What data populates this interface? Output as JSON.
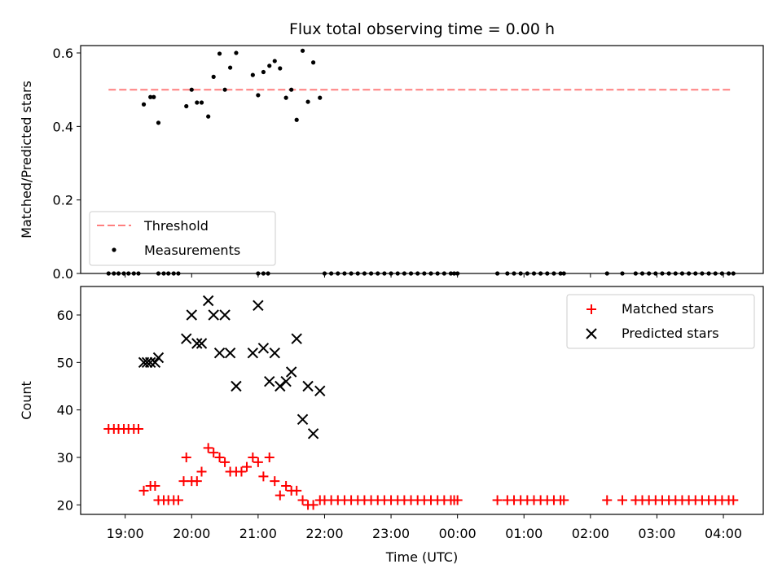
{
  "chart_data": [
    {
      "type": "scatter",
      "title": "Flux total observing time = 0.00 h",
      "xlabel": "",
      "ylabel": "Matched/Predicted stars",
      "ylim": [
        0,
        0.62
      ],
      "yticks": [
        "0.0",
        "0.2",
        "0.4",
        "0.6"
      ],
      "xlim_hours": [
        18.33,
        28.6
      ],
      "legend_position": "lower-left",
      "threshold": {
        "name": "Threshold",
        "value": 0.5,
        "x_start": 18.75,
        "x_end": 28.1,
        "color": "#ff7f7f"
      },
      "series": [
        {
          "name": "Measurements",
          "color": "#000000",
          "x": [
            18.75,
            18.83,
            18.9,
            18.98,
            19.05,
            19.13,
            19.2,
            19.5,
            19.58,
            19.65,
            19.73,
            19.8,
            21.0,
            21.08,
            21.15,
            22.0,
            22.1,
            22.2,
            22.3,
            22.4,
            22.5,
            22.6,
            22.7,
            22.8,
            22.9,
            23.0,
            23.1,
            23.2,
            23.3,
            23.4,
            23.5,
            23.6,
            23.7,
            23.8,
            23.9,
            23.95,
            24.0,
            24.6,
            24.75,
            24.85,
            24.95,
            25.05,
            25.15,
            25.25,
            25.35,
            25.45,
            25.55,
            25.6,
            26.25,
            26.48,
            26.68,
            26.78,
            26.88,
            26.98,
            27.08,
            27.18,
            27.28,
            27.38,
            27.48,
            27.58,
            27.68,
            27.78,
            27.88,
            27.98,
            28.08,
            28.15,
            19.28,
            19.38,
            19.43,
            19.5,
            19.92,
            20.0,
            20.08,
            20.15,
            20.25,
            20.33,
            20.42,
            20.5,
            20.58,
            20.67,
            20.92,
            21.0,
            21.08,
            21.17,
            21.25,
            21.33,
            21.42,
            21.5,
            21.58,
            21.67,
            21.75,
            21.83,
            21.93
          ],
          "y": [
            0,
            0,
            0,
            0,
            0,
            0,
            0,
            0,
            0,
            0,
            0,
            0,
            0,
            0,
            0,
            0,
            0,
            0,
            0,
            0,
            0,
            0,
            0,
            0,
            0,
            0,
            0,
            0,
            0,
            0,
            0,
            0,
            0,
            0,
            0,
            0,
            0,
            0,
            0,
            0,
            0,
            0,
            0,
            0,
            0,
            0,
            0,
            0,
            0,
            0,
            0,
            0,
            0,
            0,
            0,
            0,
            0,
            0,
            0,
            0,
            0,
            0,
            0,
            0,
            0,
            0,
            0.46,
            0.48,
            0.48,
            0.41,
            0.455,
            0.5,
            0.465,
            0.465,
            0.427,
            0.535,
            0.598,
            0.5,
            0.56,
            0.6,
            0.54,
            0.485,
            0.548,
            0.565,
            0.578,
            0.558,
            0.478,
            0.5,
            0.418,
            0.606,
            0.467,
            0.574,
            0.478
          ]
        }
      ]
    },
    {
      "type": "scatter",
      "title": "",
      "xlabel": "Time (UTC)",
      "ylabel": "Count",
      "ylim": [
        18,
        66
      ],
      "yticks": [
        "20",
        "30",
        "40",
        "50",
        "60"
      ],
      "xticks": [
        "19:00",
        "20:00",
        "21:00",
        "22:00",
        "23:00",
        "00:00",
        "01:00",
        "02:00",
        "03:00",
        "04:00"
      ],
      "xlim_hours": [
        18.33,
        28.6
      ],
      "legend_position": "top-right",
      "series": [
        {
          "name": "Matched stars",
          "marker": "+",
          "color": "#ff0000",
          "x": [
            18.75,
            18.83,
            18.9,
            18.98,
            19.05,
            19.13,
            19.2,
            19.28,
            19.38,
            19.45,
            19.5,
            19.58,
            19.65,
            19.73,
            19.8,
            19.88,
            19.92,
            20.0,
            20.08,
            20.15,
            20.25,
            20.33,
            20.42,
            20.5,
            20.58,
            20.67,
            20.75,
            20.83,
            20.92,
            21.0,
            21.08,
            21.17,
            21.25,
            21.33,
            21.42,
            21.5,
            21.58,
            21.67,
            21.75,
            21.83,
            21.93,
            22.0,
            22.1,
            22.2,
            22.3,
            22.4,
            22.5,
            22.6,
            22.7,
            22.8,
            22.9,
            23.0,
            23.1,
            23.2,
            23.3,
            23.4,
            23.5,
            23.6,
            23.7,
            23.8,
            23.9,
            23.95,
            24.0,
            24.6,
            24.75,
            24.85,
            24.95,
            25.05,
            25.15,
            25.25,
            25.35,
            25.45,
            25.55,
            25.6,
            26.25,
            26.48,
            26.68,
            26.78,
            26.88,
            26.98,
            27.08,
            27.18,
            27.28,
            27.38,
            27.48,
            27.58,
            27.68,
            27.78,
            27.88,
            27.98,
            28.08,
            28.15
          ],
          "y": [
            36,
            36,
            36,
            36,
            36,
            36,
            36,
            23,
            24,
            24,
            21,
            21,
            21,
            21,
            21,
            25,
            30,
            25,
            25,
            27,
            32,
            31,
            30,
            29,
            27,
            27,
            27,
            28,
            30,
            29,
            26,
            30,
            25,
            22,
            24,
            23,
            23,
            21,
            20,
            20,
            21,
            21,
            21,
            21,
            21,
            21,
            21,
            21,
            21,
            21,
            21,
            21,
            21,
            21,
            21,
            21,
            21,
            21,
            21,
            21,
            21,
            21,
            21,
            21,
            21,
            21,
            21,
            21,
            21,
            21,
            21,
            21,
            21,
            21,
            21,
            21,
            21,
            21,
            21,
            21,
            21,
            21,
            21,
            21,
            21,
            21,
            21,
            21,
            21,
            21,
            21,
            21
          ]
        },
        {
          "name": "Predicted stars",
          "marker": "x",
          "color": "#000000",
          "x": [
            19.28,
            19.33,
            19.38,
            19.45,
            19.5,
            19.92,
            20.0,
            20.08,
            20.15,
            20.25,
            20.33,
            20.42,
            20.5,
            20.58,
            20.67,
            20.92,
            21.0,
            21.08,
            21.17,
            21.25,
            21.33,
            21.42,
            21.5,
            21.58,
            21.67,
            21.75,
            21.83,
            21.93
          ],
          "y": [
            50,
            50,
            50,
            50,
            51,
            55,
            60,
            54,
            54,
            63,
            60,
            52,
            60,
            52,
            45,
            52,
            62,
            53,
            46,
            52,
            45,
            46,
            48,
            55,
            38,
            45,
            35,
            44
          ]
        }
      ]
    }
  ]
}
